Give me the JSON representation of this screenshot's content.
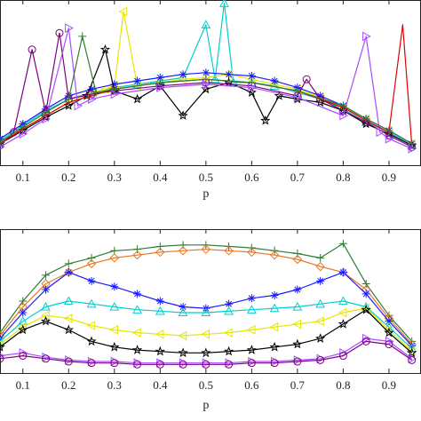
{
  "chart_data": [
    {
      "type": "line",
      "xlabel": "p",
      "xlim": [
        0.05,
        0.97
      ],
      "ylim": [
        0,
        1
      ],
      "x_ticks": [
        "0.1",
        "0.2",
        "0.3",
        "0.4",
        "0.5",
        "0.6",
        "0.7",
        "0.8",
        "0.9"
      ],
      "x_tick_values": [
        0.1,
        0.2,
        0.3,
        0.4,
        0.5,
        0.6,
        0.7,
        0.8,
        0.9
      ],
      "series": [
        {
          "color": "#00cfcf",
          "marker": "triangle-up",
          "x": [
            0.05,
            0.1,
            0.15,
            0.2,
            0.25,
            0.3,
            0.35,
            0.4,
            0.45,
            0.5,
            0.52,
            0.54,
            0.56,
            0.6,
            0.65,
            0.7,
            0.75,
            0.8,
            0.85,
            0.9,
            0.95
          ],
          "values": [
            0.15,
            0.24,
            0.33,
            0.4,
            0.44,
            0.47,
            0.49,
            0.51,
            0.53,
            0.85,
            0.52,
            0.98,
            0.5,
            0.5,
            0.48,
            0.44,
            0.4,
            0.34,
            0.26,
            0.2,
            0.12
          ]
        },
        {
          "color": "#e6e600",
          "marker": "triangle-left",
          "x": [
            0.05,
            0.1,
            0.15,
            0.2,
            0.25,
            0.28,
            0.3,
            0.32,
            0.35,
            0.4,
            0.45,
            0.5,
            0.55,
            0.6,
            0.65,
            0.7,
            0.75,
            0.8,
            0.85,
            0.9,
            0.95
          ],
          "values": [
            0.14,
            0.22,
            0.3,
            0.38,
            0.44,
            0.46,
            0.48,
            0.93,
            0.48,
            0.5,
            0.52,
            0.53,
            0.55,
            0.52,
            0.49,
            0.46,
            0.41,
            0.35,
            0.28,
            0.21,
            0.13
          ]
        },
        {
          "color": "#1a1aff",
          "marker": "asterisk",
          "x": [
            0.05,
            0.1,
            0.15,
            0.2,
            0.25,
            0.3,
            0.35,
            0.4,
            0.45,
            0.5,
            0.55,
            0.6,
            0.65,
            0.7,
            0.75,
            0.8,
            0.85,
            0.9,
            0.95
          ],
          "values": [
            0.16,
            0.25,
            0.34,
            0.42,
            0.46,
            0.49,
            0.51,
            0.53,
            0.55,
            0.56,
            0.55,
            0.54,
            0.51,
            0.47,
            0.42,
            0.36,
            0.28,
            0.21,
            0.13
          ]
        },
        {
          "color": "#000000",
          "marker": "pentagram",
          "x": [
            0.05,
            0.1,
            0.15,
            0.2,
            0.24,
            0.28,
            0.3,
            0.35,
            0.4,
            0.45,
            0.5,
            0.55,
            0.6,
            0.63,
            0.66,
            0.7,
            0.75,
            0.8,
            0.85,
            0.9,
            0.95
          ],
          "values": [
            0.13,
            0.21,
            0.29,
            0.36,
            0.42,
            0.7,
            0.45,
            0.4,
            0.48,
            0.3,
            0.46,
            0.5,
            0.44,
            0.27,
            0.42,
            0.4,
            0.38,
            0.33,
            0.25,
            0.19,
            0.12
          ]
        },
        {
          "color": "#7f007f",
          "marker": "circle",
          "x": [
            0.05,
            0.08,
            0.12,
            0.15,
            0.18,
            0.2,
            0.25,
            0.3,
            0.4,
            0.5,
            0.6,
            0.7,
            0.72,
            0.75,
            0.8,
            0.85,
            0.9,
            0.95
          ],
          "values": [
            0.12,
            0.2,
            0.7,
            0.32,
            0.8,
            0.4,
            0.43,
            0.45,
            0.48,
            0.5,
            0.48,
            0.42,
            0.52,
            0.4,
            0.33,
            0.26,
            0.18,
            0.11
          ]
        },
        {
          "color": "#a64dff",
          "marker": "triangle-right",
          "x": [
            0.05,
            0.1,
            0.15,
            0.2,
            0.22,
            0.25,
            0.3,
            0.4,
            0.5,
            0.6,
            0.7,
            0.8,
            0.85,
            0.88,
            0.9,
            0.95
          ],
          "values": [
            0.11,
            0.19,
            0.28,
            0.83,
            0.36,
            0.4,
            0.43,
            0.47,
            0.49,
            0.47,
            0.41,
            0.3,
            0.78,
            0.2,
            0.16,
            0.1
          ]
        },
        {
          "color": "#dd0000",
          "marker": "none",
          "x": [
            0.05,
            0.1,
            0.2,
            0.3,
            0.4,
            0.5,
            0.6,
            0.7,
            0.8,
            0.85,
            0.9,
            0.93,
            0.95
          ],
          "values": [
            0.13,
            0.22,
            0.38,
            0.46,
            0.5,
            0.52,
            0.5,
            0.45,
            0.35,
            0.27,
            0.2,
            0.85,
            0.12
          ]
        },
        {
          "color": "#2e7d32",
          "marker": "plus",
          "x": [
            0.05,
            0.1,
            0.15,
            0.2,
            0.23,
            0.26,
            0.3,
            0.4,
            0.5,
            0.6,
            0.7,
            0.8,
            0.85,
            0.9,
            0.95
          ],
          "values": [
            0.14,
            0.23,
            0.32,
            0.4,
            0.78,
            0.44,
            0.46,
            0.5,
            0.52,
            0.5,
            0.45,
            0.36,
            0.28,
            0.21,
            0.13
          ]
        }
      ]
    },
    {
      "type": "line",
      "xlabel": "p",
      "xlim": [
        0.05,
        0.97
      ],
      "ylim": [
        0,
        1
      ],
      "x_ticks": [
        "0.1",
        "0.2",
        "0.3",
        "0.4",
        "0.5",
        "0.6",
        "0.7",
        "0.8",
        "0.9"
      ],
      "x_tick_values": [
        0.1,
        0.2,
        0.3,
        0.4,
        0.5,
        0.6,
        0.7,
        0.8,
        0.9
      ],
      "series": [
        {
          "color": "#2e7d32",
          "marker": "plus",
          "x": [
            0.05,
            0.1,
            0.15,
            0.2,
            0.25,
            0.3,
            0.35,
            0.4,
            0.45,
            0.5,
            0.55,
            0.6,
            0.65,
            0.7,
            0.75,
            0.8,
            0.85,
            0.9,
            0.95
          ],
          "values": [
            0.28,
            0.5,
            0.68,
            0.76,
            0.8,
            0.85,
            0.86,
            0.88,
            0.89,
            0.89,
            0.88,
            0.87,
            0.85,
            0.83,
            0.8,
            0.9,
            0.62,
            0.4,
            0.22
          ]
        },
        {
          "color": "#e87722",
          "marker": "diamond",
          "x": [
            0.05,
            0.1,
            0.15,
            0.2,
            0.25,
            0.3,
            0.35,
            0.4,
            0.45,
            0.5,
            0.55,
            0.6,
            0.65,
            0.7,
            0.75,
            0.8,
            0.85,
            0.9,
            0.95
          ],
          "values": [
            0.26,
            0.46,
            0.62,
            0.7,
            0.76,
            0.8,
            0.82,
            0.84,
            0.85,
            0.86,
            0.85,
            0.84,
            0.82,
            0.79,
            0.74,
            0.7,
            0.58,
            0.38,
            0.2
          ]
        },
        {
          "color": "#1a1aff",
          "marker": "asterisk",
          "x": [
            0.05,
            0.1,
            0.15,
            0.2,
            0.25,
            0.3,
            0.35,
            0.4,
            0.45,
            0.5,
            0.55,
            0.6,
            0.65,
            0.7,
            0.75,
            0.8,
            0.85,
            0.9,
            0.95
          ],
          "values": [
            0.24,
            0.42,
            0.58,
            0.7,
            0.64,
            0.6,
            0.55,
            0.5,
            0.46,
            0.45,
            0.48,
            0.52,
            0.54,
            0.58,
            0.64,
            0.7,
            0.55,
            0.36,
            0.19
          ]
        },
        {
          "color": "#00cfcf",
          "marker": "triangle-up",
          "x": [
            0.05,
            0.1,
            0.15,
            0.2,
            0.25,
            0.3,
            0.35,
            0.4,
            0.45,
            0.5,
            0.55,
            0.6,
            0.65,
            0.7,
            0.75,
            0.8,
            0.85,
            0.9,
            0.95
          ],
          "values": [
            0.22,
            0.36,
            0.46,
            0.5,
            0.48,
            0.46,
            0.44,
            0.43,
            0.42,
            0.42,
            0.43,
            0.44,
            0.45,
            0.46,
            0.48,
            0.5,
            0.46,
            0.32,
            0.17
          ]
        },
        {
          "color": "#e6e600",
          "marker": "triangle-left",
          "x": [
            0.05,
            0.1,
            0.15,
            0.2,
            0.25,
            0.3,
            0.35,
            0.4,
            0.45,
            0.5,
            0.55,
            0.6,
            0.65,
            0.7,
            0.75,
            0.8,
            0.85,
            0.9,
            0.95
          ],
          "values": [
            0.2,
            0.32,
            0.4,
            0.38,
            0.33,
            0.3,
            0.28,
            0.27,
            0.26,
            0.27,
            0.28,
            0.3,
            0.32,
            0.34,
            0.36,
            0.42,
            0.45,
            0.3,
            0.15
          ]
        },
        {
          "color": "#000000",
          "marker": "pentagram",
          "x": [
            0.05,
            0.1,
            0.15,
            0.2,
            0.25,
            0.3,
            0.35,
            0.4,
            0.45,
            0.5,
            0.55,
            0.6,
            0.65,
            0.7,
            0.75,
            0.8,
            0.85,
            0.9,
            0.95
          ],
          "values": [
            0.18,
            0.3,
            0.36,
            0.3,
            0.22,
            0.18,
            0.16,
            0.15,
            0.14,
            0.14,
            0.15,
            0.16,
            0.18,
            0.2,
            0.24,
            0.34,
            0.44,
            0.28,
            0.14
          ]
        },
        {
          "color": "#a64dff",
          "marker": "triangle-right",
          "x": [
            0.05,
            0.1,
            0.15,
            0.2,
            0.25,
            0.3,
            0.35,
            0.4,
            0.45,
            0.5,
            0.55,
            0.6,
            0.65,
            0.7,
            0.75,
            0.8,
            0.85,
            0.9,
            0.95
          ],
          "values": [
            0.12,
            0.14,
            0.11,
            0.09,
            0.08,
            0.08,
            0.07,
            0.07,
            0.07,
            0.07,
            0.07,
            0.08,
            0.08,
            0.09,
            0.1,
            0.14,
            0.24,
            0.22,
            0.1
          ]
        },
        {
          "color": "#7f007f",
          "marker": "circle",
          "x": [
            0.05,
            0.1,
            0.15,
            0.2,
            0.25,
            0.3,
            0.35,
            0.4,
            0.45,
            0.5,
            0.55,
            0.6,
            0.65,
            0.7,
            0.75,
            0.8,
            0.85,
            0.9,
            0.95
          ],
          "values": [
            0.1,
            0.12,
            0.1,
            0.08,
            0.07,
            0.07,
            0.06,
            0.06,
            0.06,
            0.06,
            0.06,
            0.07,
            0.07,
            0.08,
            0.09,
            0.12,
            0.22,
            0.2,
            0.09
          ]
        }
      ]
    }
  ]
}
